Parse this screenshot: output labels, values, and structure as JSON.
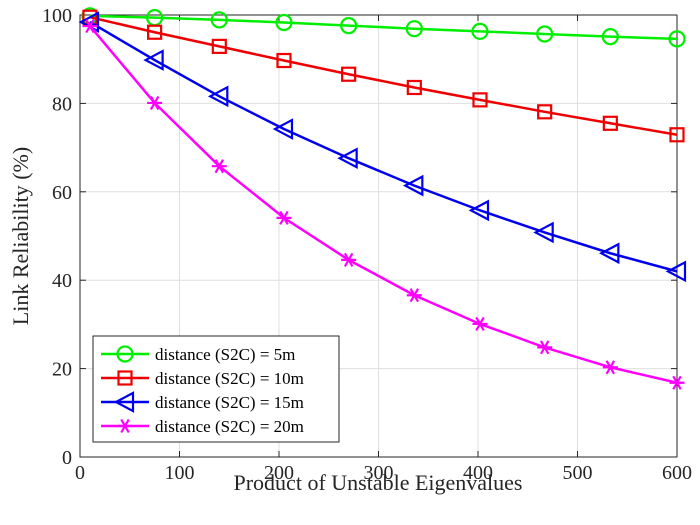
{
  "chart_data": {
    "type": "line",
    "title": "",
    "xlabel": "Product of Unstable Eigenvalues",
    "ylabel": "Link Reliability (%)",
    "xlim": [
      0,
      600
    ],
    "ylim": [
      0,
      100
    ],
    "xticks": [
      0,
      100,
      200,
      300,
      400,
      500,
      600
    ],
    "yticks": [
      0,
      20,
      40,
      60,
      80,
      100
    ],
    "grid": true,
    "legend_position": "bottom-left",
    "x": [
      10,
      75,
      140,
      205,
      270,
      336,
      402,
      467,
      533,
      600
    ],
    "series": [
      {
        "name": "distance (S2C) = 5m",
        "color": "#00ee00",
        "marker": "circle",
        "values": [
          99.8,
          99.4,
          98.9,
          98.3,
          97.6,
          96.9,
          96.3,
          95.7,
          95.1,
          94.6
        ]
      },
      {
        "name": "distance (S2C) = 10m",
        "color": "#ee0000",
        "marker": "square",
        "values": [
          99.5,
          96.1,
          92.9,
          89.7,
          86.6,
          83.6,
          80.8,
          78.1,
          75.5,
          72.9
        ]
      },
      {
        "name": "distance (S2C) = 15m",
        "color": "#0000ee",
        "marker": "triangle-left",
        "values": [
          98.4,
          89.8,
          81.6,
          74.2,
          67.6,
          61.4,
          55.8,
          50.8,
          46.1,
          42.0
        ]
      },
      {
        "name": "distance (S2C) = 20m",
        "color": "#ff00ff",
        "marker": "asterisk",
        "values": [
          97.5,
          80.1,
          65.8,
          54.1,
          44.6,
          36.6,
          30.1,
          24.8,
          20.3,
          16.8
        ]
      }
    ]
  }
}
